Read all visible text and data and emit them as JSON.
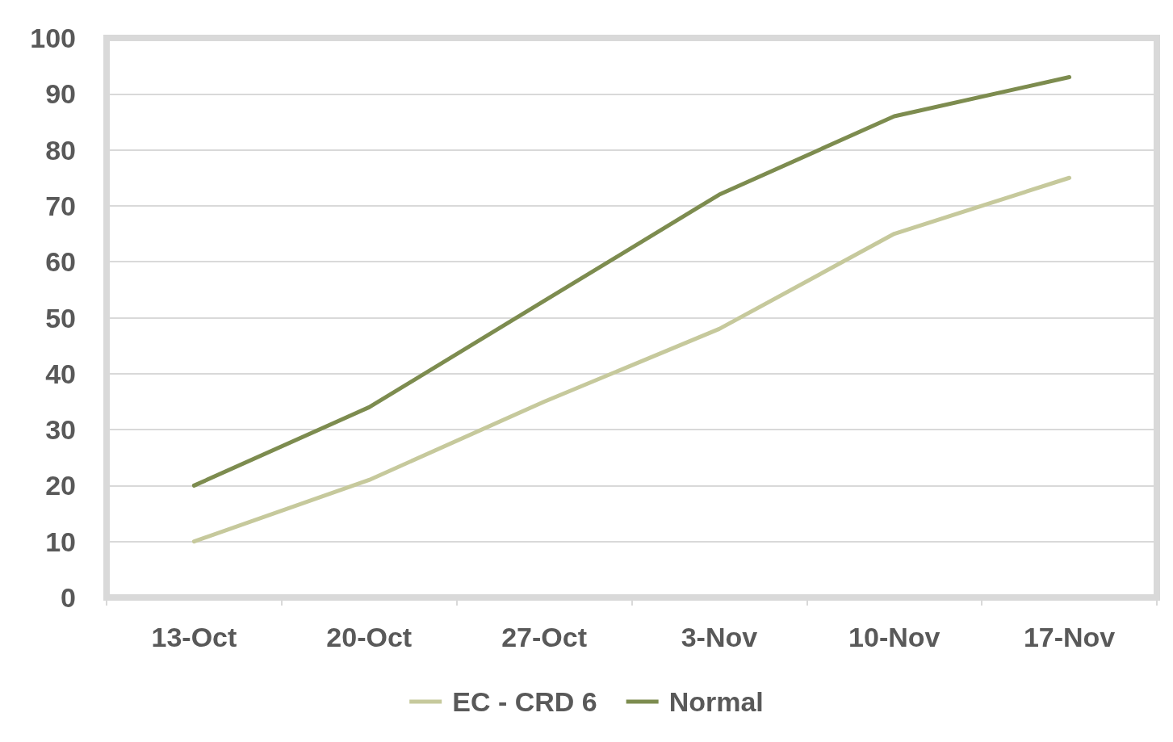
{
  "chart_data": {
    "type": "line",
    "categories": [
      "13-Oct",
      "20-Oct",
      "27-Oct",
      "3-Nov",
      "10-Nov",
      "17-Nov"
    ],
    "series": [
      {
        "name": "EC - CRD 6",
        "color": "#c6c99c",
        "values": [
          10,
          21,
          35,
          48,
          65,
          75
        ]
      },
      {
        "name": "Normal",
        "color": "#7d8c4f",
        "values": [
          20,
          34,
          53,
          72,
          86,
          93
        ]
      }
    ],
    "ylim": [
      0,
      100
    ],
    "yticks": [
      0,
      10,
      20,
      30,
      40,
      50,
      60,
      70,
      80,
      90,
      100
    ],
    "grid": "y",
    "legend": "bottom",
    "marker": "none",
    "line_style": "solid"
  }
}
